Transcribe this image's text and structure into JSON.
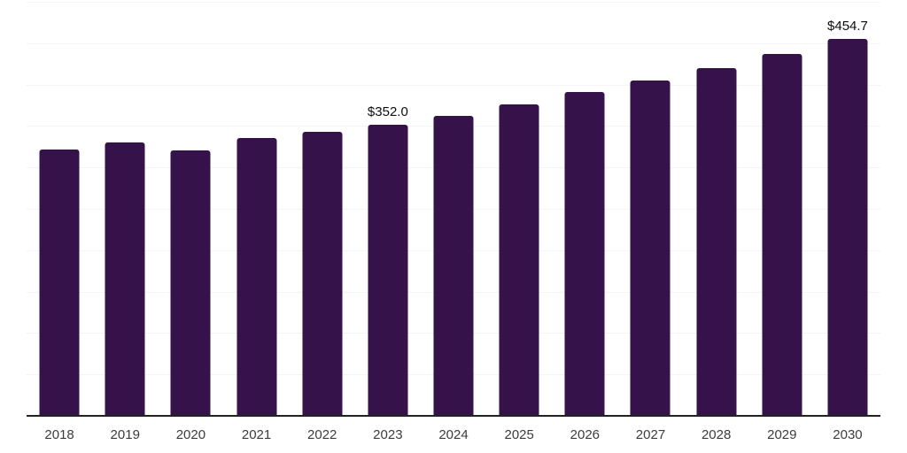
{
  "chart_data": {
    "type": "bar",
    "title": "",
    "xlabel": "",
    "ylabel": "",
    "categories": [
      "2018",
      "2019",
      "2020",
      "2021",
      "2022",
      "2023",
      "2024",
      "2025",
      "2026",
      "2027",
      "2028",
      "2029",
      "2030"
    ],
    "values": [
      322.0,
      330.0,
      320.5,
      335.0,
      342.5,
      352.0,
      362.5,
      376.0,
      391.0,
      404.5,
      420.0,
      437.0,
      454.7
    ],
    "point_labels": [
      "",
      "",
      "",
      "",
      "",
      "$352.0",
      "",
      "",
      "",
      "",
      "",
      "",
      "$454.7"
    ],
    "ylim": [
      0,
      500
    ],
    "grid": true,
    "grid_interval": 50,
    "legend": false,
    "y_axis_tick_labels_visible": false,
    "colors": {
      "bar": "#351249",
      "gridline": "#f4f4f4",
      "axis_line": "#222222",
      "tick_label": "#3c3c3c",
      "value_label": "#0d0d0d",
      "background": "#ffffff"
    }
  }
}
